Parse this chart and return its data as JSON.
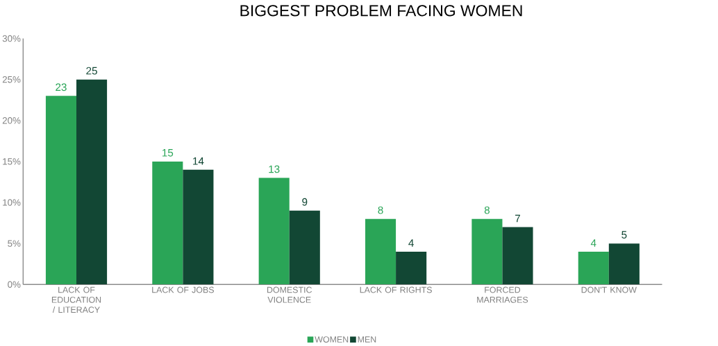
{
  "chart_data": {
    "type": "bar",
    "title": "BIGGEST PROBLEM FACING WOMEN",
    "categories": [
      "LACK OF EDUCATION / LITERACY",
      "LACK OF JOBS",
      "DOMESTIC VIOLENCE",
      "LACK OF RIGHTS",
      "FORCED MARRIAGES",
      "DON'T KNOW"
    ],
    "series": [
      {
        "name": "WOMEN",
        "color": "#2aa557",
        "values": [
          23,
          15,
          13,
          8,
          8,
          4
        ]
      },
      {
        "name": "MEN",
        "color": "#124734",
        "values": [
          25,
          14,
          9,
          4,
          7,
          5
        ]
      }
    ],
    "ylim": [
      0,
      30
    ],
    "yticks": [
      {
        "value": 0,
        "label": "0%"
      },
      {
        "value": 5,
        "label": "5%"
      },
      {
        "value": 10,
        "label": "10%"
      },
      {
        "value": 15,
        "label": "15%"
      },
      {
        "value": 20,
        "label": "20%"
      },
      {
        "value": 25,
        "label": "25%"
      },
      {
        "value": 30,
        "label": "30%"
      }
    ],
    "data_labels": true,
    "legend": "bottom"
  }
}
